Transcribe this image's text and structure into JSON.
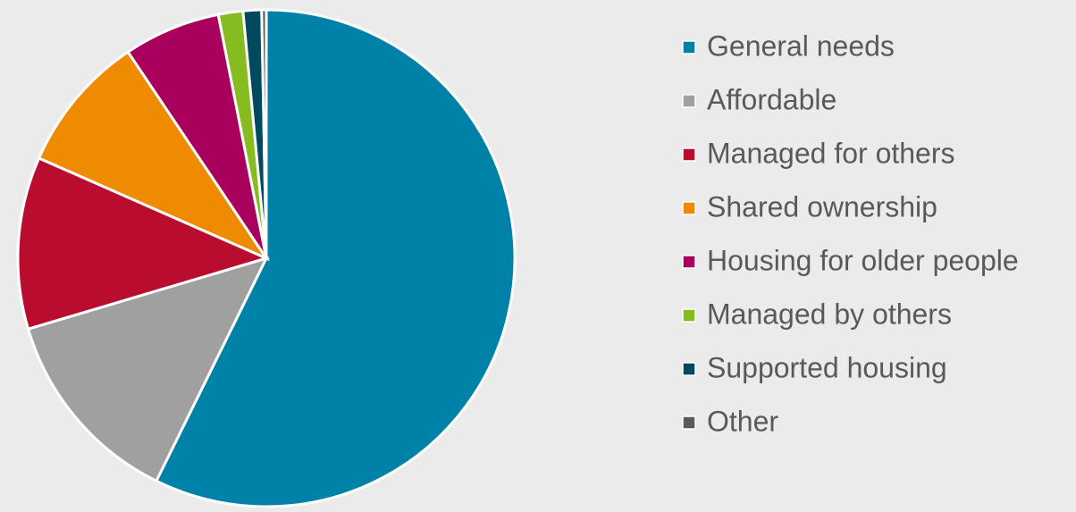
{
  "chart_data": {
    "type": "pie",
    "categories": [
      "General needs",
      "Affordable",
      "Managed for others",
      "Shared ownership",
      "Housing for older people",
      "Managed by others",
      "Supported housing",
      "Other"
    ],
    "values": [
      57.3,
      13.1,
      11.2,
      9.0,
      6.3,
      1.6,
      1.2,
      0.3
    ],
    "colors": [
      "#0081a7",
      "#a0a0a0",
      "#b90c2e",
      "#ee8b00",
      "#a8005c",
      "#86bc1f",
      "#004a60",
      "#5a5a5a"
    ],
    "legend": "right"
  }
}
